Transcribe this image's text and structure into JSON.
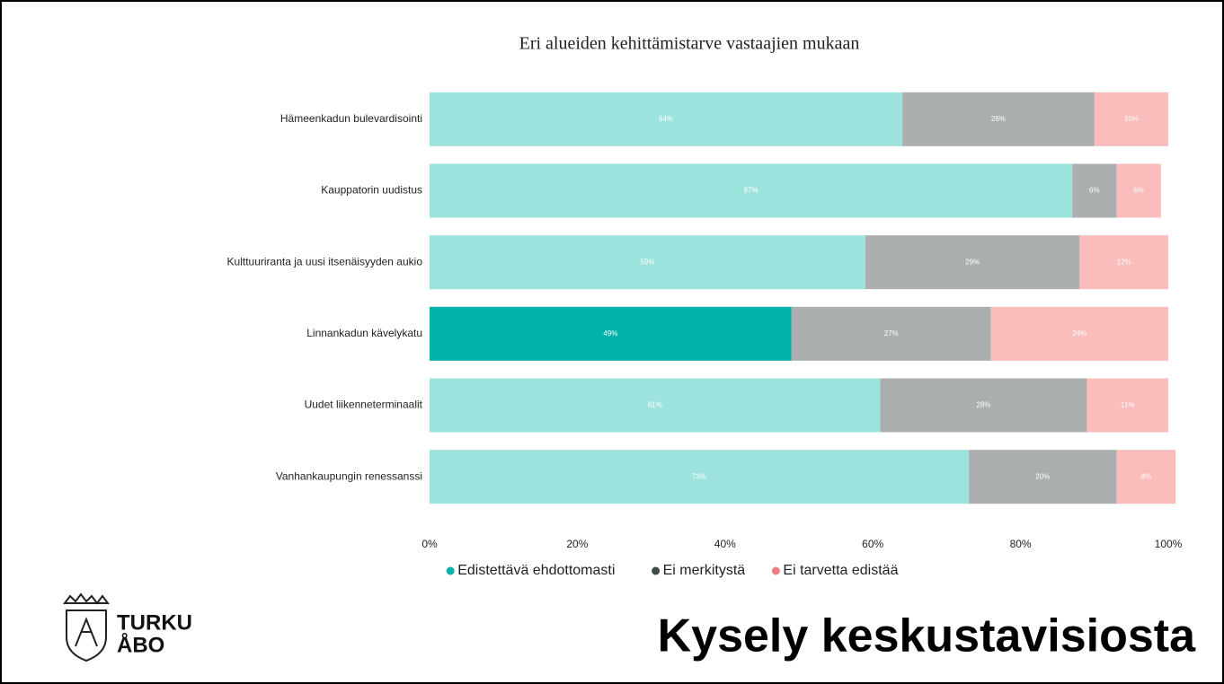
{
  "slide_title": "Kysely keskustavisiosta",
  "logo": {
    "lines": [
      "TURKU",
      "ÅBO"
    ]
  },
  "chart_data": {
    "type": "stacked-bar-horizontal",
    "title": "Eri alueiden kehittämistarve vastaajien mukaan",
    "categories": [
      "Hämeenkadun bulevardisointi",
      "Kauppatorin uudistus",
      "Kulttuuriranta ja uusi itsenäisyyden aukio",
      "Linnankadun kävelykatu",
      "Uudet liikenneterminaalit",
      "Vanhankaupungin renessanssi"
    ],
    "series": [
      {
        "name": "Edistettävä ehdottomasti",
        "color": "#9de3dd",
        "legend_color": "#00b2a9",
        "colors": [
          "#9de3dd",
          "#9de3dd",
          "#9de3dd",
          "#00b2a9",
          "#9de3dd",
          "#9de3dd"
        ],
        "values": [
          64,
          87,
          59,
          49,
          61,
          73
        ],
        "value_labels": [
          "64%",
          "87%",
          "59%",
          "49%",
          "61%",
          "73%"
        ]
      },
      {
        "name": "Ei merkitystä",
        "color": "#abafb0",
        "legend_color": "#3f4a48",
        "values": [
          26,
          6,
          29,
          27,
          28,
          20
        ],
        "value_labels": [
          "26%",
          "6%",
          "29%",
          "27%",
          "28%",
          "20%"
        ]
      },
      {
        "name": "Ei tarvetta edistää",
        "color": "#fbbcbc",
        "legend_color": "#f08080",
        "values": [
          10,
          6,
          12,
          24,
          11,
          8
        ],
        "value_labels": [
          "10%",
          "6%",
          "12%",
          "24%",
          "11%",
          "8%"
        ]
      }
    ],
    "xlim": [
      0,
      100
    ],
    "xticks": [
      {
        "value": 0,
        "label": "0%"
      },
      {
        "value": 20,
        "label": "20%"
      },
      {
        "value": 40,
        "label": "40%"
      },
      {
        "value": 60,
        "label": "60%"
      },
      {
        "value": 80,
        "label": "80%"
      },
      {
        "value": 100,
        "label": "100%"
      }
    ],
    "legend": "bottom"
  }
}
